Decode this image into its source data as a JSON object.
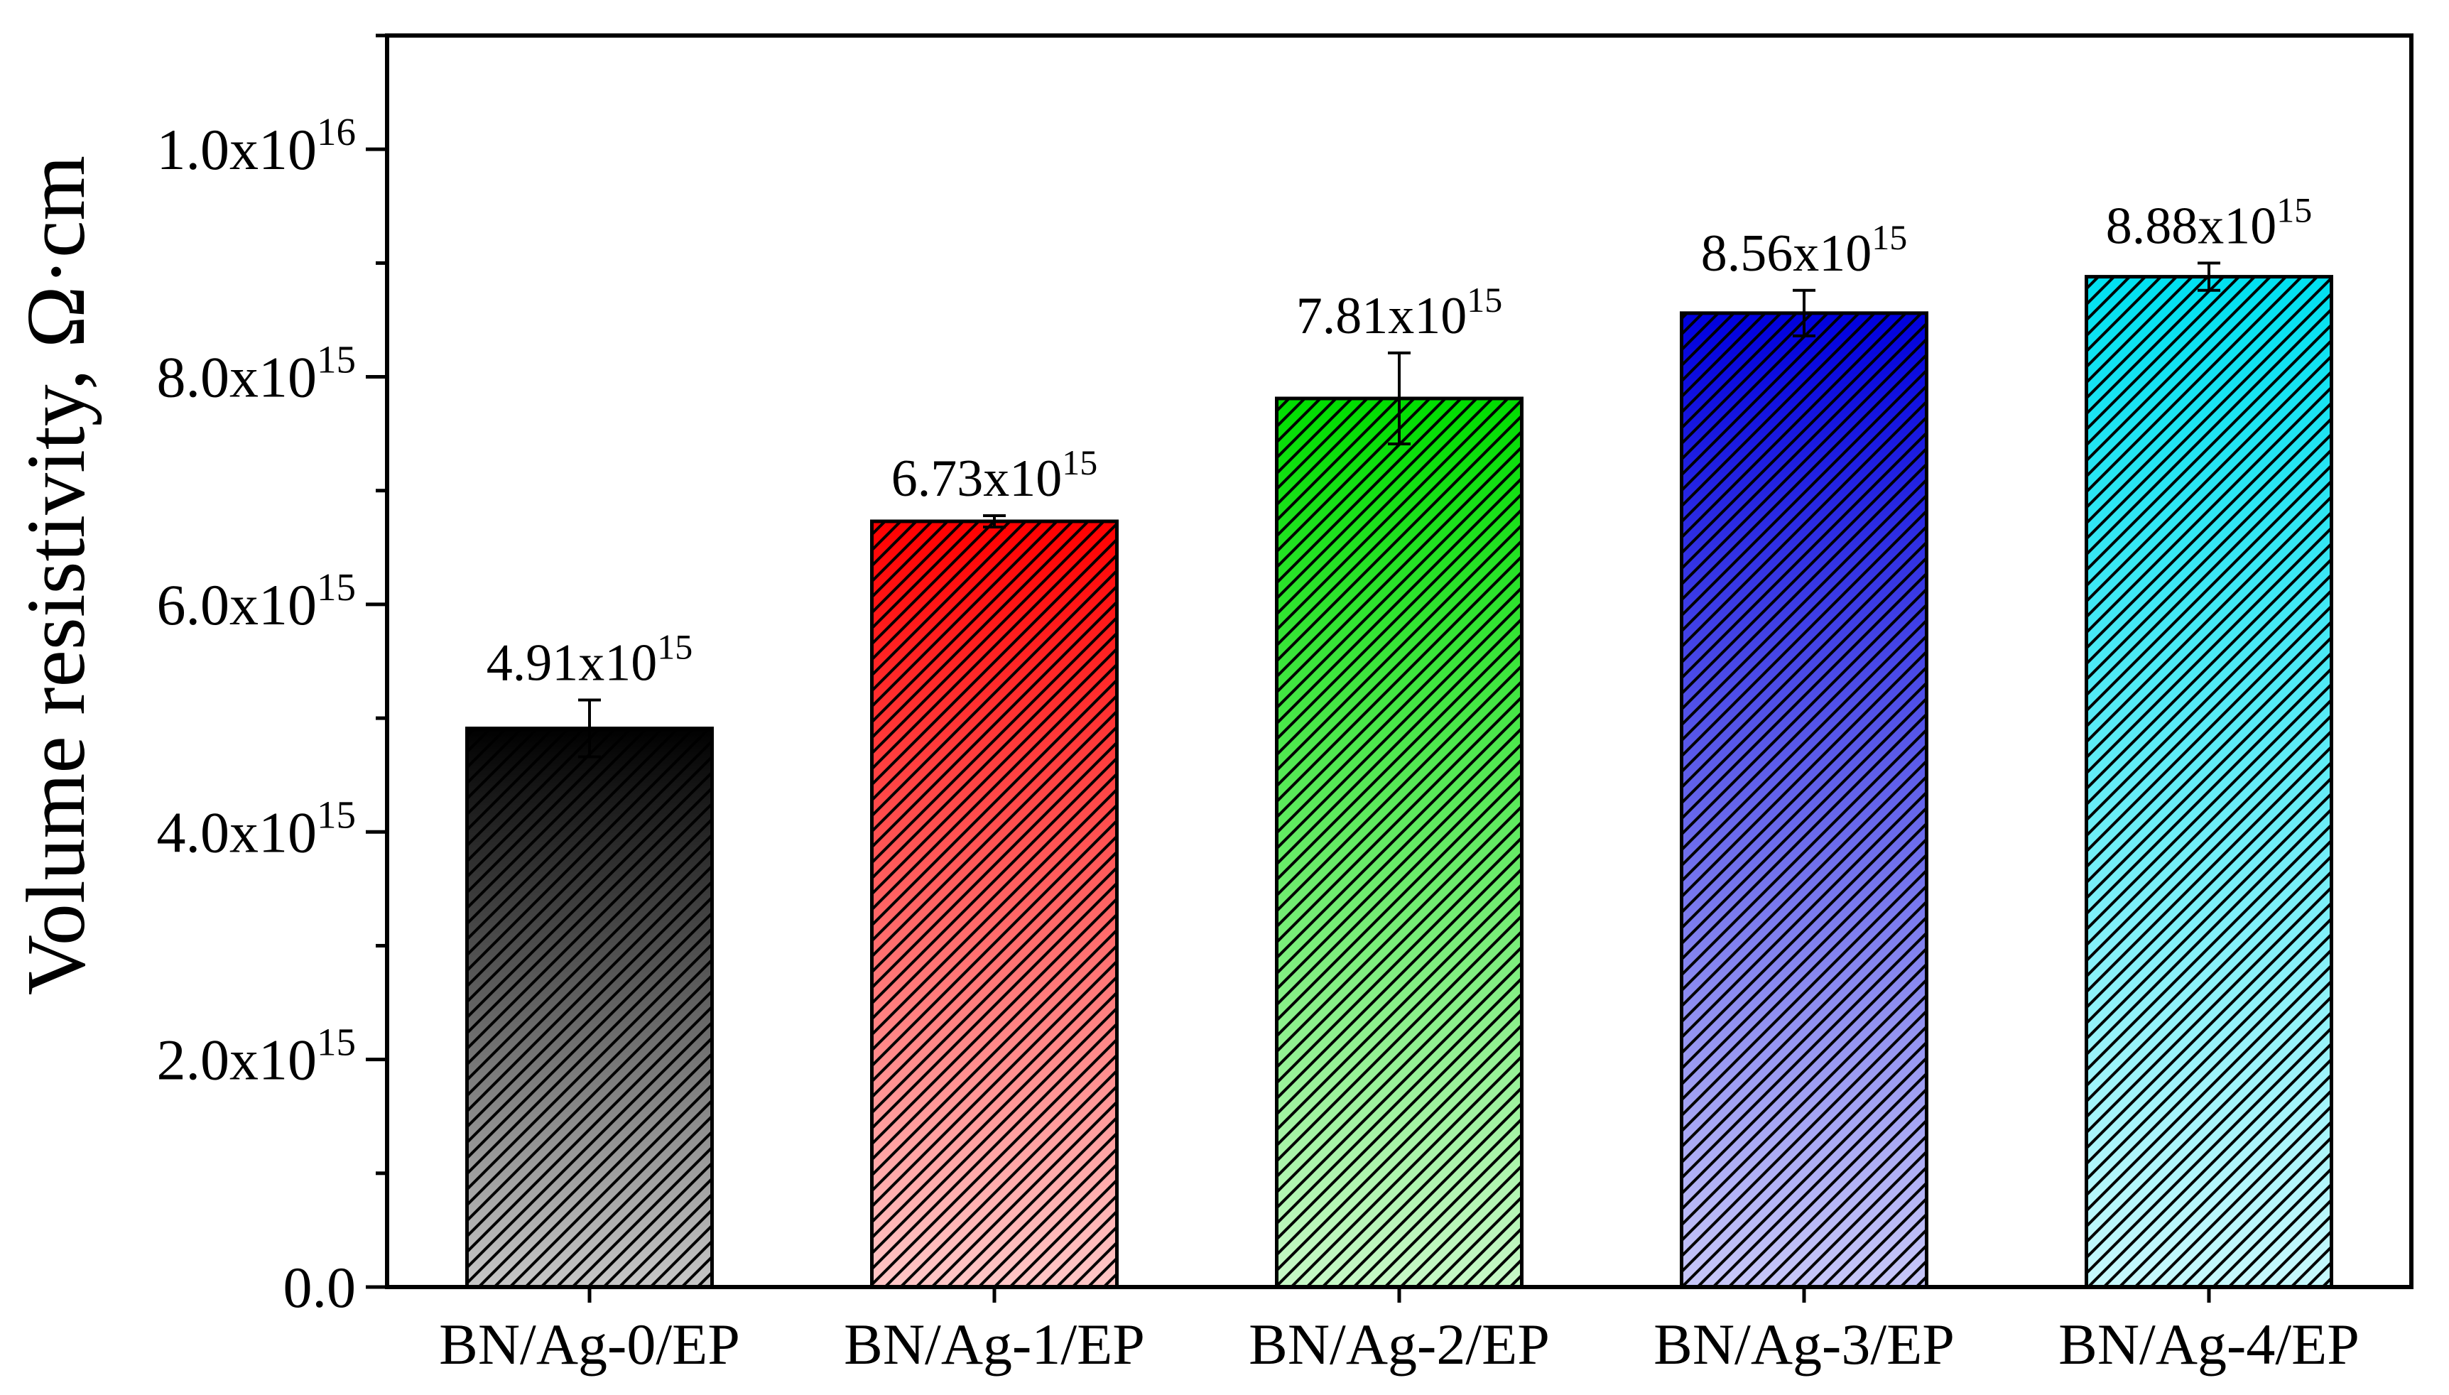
{
  "chart_data": {
    "type": "bar",
    "title": "",
    "xlabel": "",
    "ylabel": "Volume resistivity,  Ω·cm",
    "ylim": [
      0,
      1.1e+16
    ],
    "major_tick_step": 2000000000000000.0,
    "yticks": [
      {
        "value": 0,
        "mantissa": "0.0",
        "exp": ""
      },
      {
        "value": 2000000000000000.0,
        "mantissa": "2.0x10",
        "exp": "15"
      },
      {
        "value": 4000000000000000.0,
        "mantissa": "4.0x10",
        "exp": "15"
      },
      {
        "value": 6000000000000000.0,
        "mantissa": "6.0x10",
        "exp": "15"
      },
      {
        "value": 8000000000000000.0,
        "mantissa": "8.0x10",
        "exp": "15"
      },
      {
        "value": 1e+16,
        "mantissa": "1.0x10",
        "exp": "16"
      }
    ],
    "categories": [
      "BN/Ag-0/EP",
      "BN/Ag-1/EP",
      "BN/Ag-2/EP",
      "BN/Ag-3/EP",
      "BN/Ag-4/EP"
    ],
    "values": [
      4910000000000000.0,
      6730000000000000.0,
      7810000000000000.0,
      8560000000000000.0,
      8880000000000000.0
    ],
    "errors": [
      250000000000000.0,
      50000000000000.0,
      400000000000000.0,
      200000000000000.0,
      120000000000000.0
    ],
    "value_labels": [
      {
        "mantissa": "4.91x10",
        "exp": "15"
      },
      {
        "mantissa": "6.73x10",
        "exp": "15"
      },
      {
        "mantissa": "7.81x10",
        "exp": "15"
      },
      {
        "mantissa": "8.56x10",
        "exp": "15"
      },
      {
        "mantissa": "8.88x10",
        "exp": "15"
      }
    ],
    "colors": [
      "#000000",
      "#ff0000",
      "#00dd00",
      "#0000dd",
      "#00e0f0"
    ],
    "pattern": "diagonal-hatch",
    "grid": false
  }
}
